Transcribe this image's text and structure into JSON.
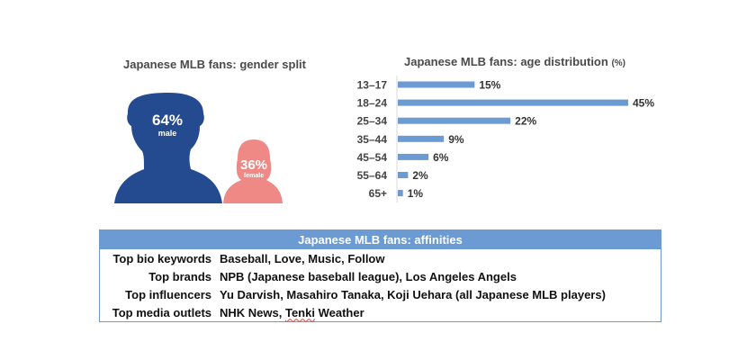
{
  "chart_data": [
    {
      "type": "pie",
      "title": "Japanese MLB fans: gender split",
      "categories": [
        "male",
        "female"
      ],
      "values": [
        64,
        36
      ],
      "labels": [
        "64%",
        "36%"
      ],
      "colors": [
        "#244a8f",
        "#ef8985"
      ]
    },
    {
      "type": "bar",
      "orientation": "horizontal",
      "title": "Japanese MLB fans: age distribution",
      "title_unit": "(%)",
      "categories": [
        "13-17",
        "18-24",
        "25-34",
        "35-44",
        "45-54",
        "55-64",
        "65+"
      ],
      "values": [
        15,
        45,
        22,
        9,
        6,
        2,
        1
      ],
      "value_labels": [
        "15%",
        "45%",
        "22%",
        "9%",
        "6%",
        "2%",
        "1%"
      ],
      "xlim": [
        0,
        45
      ],
      "grid": false,
      "bar_color": "#6b9bd2"
    }
  ],
  "affinities": {
    "title": "Japanese MLB fans: affinities",
    "rows": [
      {
        "key": "Top bio keywords",
        "value": "Baseball, Love, Music, Follow"
      },
      {
        "key": "Top brands",
        "value": "NPB (Japanese baseball league), Los Angeles Angels"
      },
      {
        "key": "Top influencers",
        "value": "Yu Darvish, Masahiro Tanaka, Koji Uehara (all Japanese MLB players)"
      },
      {
        "key": "Top media outlets",
        "value_parts": [
          "NHK News, ",
          "Tenki",
          " Weather"
        ]
      }
    ],
    "header_color": "#6b9bd2"
  }
}
